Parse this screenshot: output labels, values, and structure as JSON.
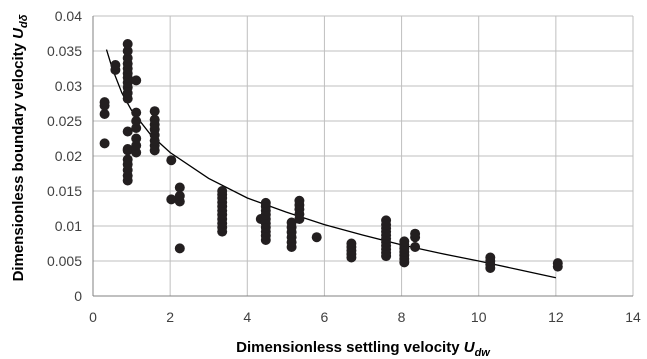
{
  "chart_data": {
    "type": "scatter",
    "title": "",
    "xlabel": "Dimensionless settling velocity",
    "xlabel_var": "U",
    "xlabel_sub": "dw",
    "ylabel": "Dimensionless boundary velocity",
    "ylabel_var": "U",
    "ylabel_sub": "dδ",
    "xlim": [
      0,
      14
    ],
    "ylim": [
      0,
      0.04
    ],
    "x_ticks": [
      "0",
      "2",
      "4",
      "6",
      "8",
      "10",
      "12",
      "14"
    ],
    "y_ticks": [
      "0",
      "0.005",
      "0.01",
      "0.015",
      "0.02",
      "0.025",
      "0.03",
      "0.035",
      "0.04"
    ],
    "grid": true,
    "legend": "none",
    "marker_color": "#231f20",
    "grid_color": "#bfbfbf",
    "series": [
      {
        "type": "scatter",
        "points": [
          [
            0.3,
            0.0218
          ],
          [
            0.3,
            0.026
          ],
          [
            0.3,
            0.0272
          ],
          [
            0.3,
            0.0277
          ],
          [
            0.58,
            0.0323
          ],
          [
            0.58,
            0.033
          ],
          [
            0.9,
            0.0165
          ],
          [
            0.9,
            0.0172
          ],
          [
            0.9,
            0.018
          ],
          [
            0.9,
            0.0188
          ],
          [
            0.9,
            0.0195
          ],
          [
            0.9,
            0.0208
          ],
          [
            0.9,
            0.021
          ],
          [
            0.9,
            0.0235
          ],
          [
            0.9,
            0.0282
          ],
          [
            0.9,
            0.029
          ],
          [
            0.9,
            0.0298
          ],
          [
            0.9,
            0.0305
          ],
          [
            0.9,
            0.0312
          ],
          [
            0.9,
            0.0318
          ],
          [
            0.9,
            0.0325
          ],
          [
            0.9,
            0.0332
          ],
          [
            0.9,
            0.034
          ],
          [
            0.9,
            0.035
          ],
          [
            0.9,
            0.036
          ],
          [
            1.12,
            0.0205
          ],
          [
            1.12,
            0.0215
          ],
          [
            1.12,
            0.0225
          ],
          [
            1.12,
            0.024
          ],
          [
            1.12,
            0.025
          ],
          [
            1.12,
            0.0262
          ],
          [
            1.12,
            0.0308
          ],
          [
            1.6,
            0.0208
          ],
          [
            1.6,
            0.0215
          ],
          [
            1.6,
            0.0222
          ],
          [
            1.6,
            0.023
          ],
          [
            1.6,
            0.0238
          ],
          [
            1.6,
            0.0245
          ],
          [
            1.6,
            0.0252
          ],
          [
            1.6,
            0.0264
          ],
          [
            2.03,
            0.0194
          ],
          [
            2.03,
            0.0138
          ],
          [
            2.25,
            0.0135
          ],
          [
            2.25,
            0.0143
          ],
          [
            2.25,
            0.0155
          ],
          [
            2.25,
            0.0068
          ],
          [
            3.35,
            0.0092
          ],
          [
            3.35,
            0.0098
          ],
          [
            3.35,
            0.0104
          ],
          [
            3.35,
            0.011
          ],
          [
            3.35,
            0.0116
          ],
          [
            3.35,
            0.0122
          ],
          [
            3.35,
            0.0128
          ],
          [
            3.35,
            0.0134
          ],
          [
            3.35,
            0.014
          ],
          [
            3.35,
            0.0145
          ],
          [
            3.35,
            0.015
          ],
          [
            4.35,
            0.011
          ],
          [
            4.48,
            0.008
          ],
          [
            4.48,
            0.0086
          ],
          [
            4.48,
            0.0092
          ],
          [
            4.48,
            0.0098
          ],
          [
            4.48,
            0.0104
          ],
          [
            4.48,
            0.011
          ],
          [
            4.48,
            0.0116
          ],
          [
            4.48,
            0.0122
          ],
          [
            4.48,
            0.0128
          ],
          [
            4.48,
            0.0133
          ],
          [
            5.15,
            0.007
          ],
          [
            5.15,
            0.0077
          ],
          [
            5.15,
            0.0084
          ],
          [
            5.15,
            0.0091
          ],
          [
            5.15,
            0.0098
          ],
          [
            5.15,
            0.0105
          ],
          [
            5.35,
            0.011
          ],
          [
            5.35,
            0.0117
          ],
          [
            5.35,
            0.0124
          ],
          [
            5.35,
            0.013
          ],
          [
            5.35,
            0.0136
          ],
          [
            5.8,
            0.0084
          ],
          [
            6.7,
            0.0055
          ],
          [
            6.7,
            0.006
          ],
          [
            6.7,
            0.0065
          ],
          [
            6.7,
            0.007
          ],
          [
            6.7,
            0.0075
          ],
          [
            7.6,
            0.0057
          ],
          [
            7.6,
            0.0062
          ],
          [
            7.6,
            0.0067
          ],
          [
            7.6,
            0.0072
          ],
          [
            7.6,
            0.0077
          ],
          [
            7.6,
            0.0082
          ],
          [
            7.6,
            0.0087
          ],
          [
            7.6,
            0.0092
          ],
          [
            7.6,
            0.0097
          ],
          [
            7.6,
            0.0102
          ],
          [
            7.6,
            0.0108
          ],
          [
            8.07,
            0.0048
          ],
          [
            8.07,
            0.0053
          ],
          [
            8.07,
            0.0058
          ],
          [
            8.07,
            0.0063
          ],
          [
            8.07,
            0.0068
          ],
          [
            8.07,
            0.0073
          ],
          [
            8.07,
            0.0078
          ],
          [
            8.35,
            0.007
          ],
          [
            8.35,
            0.0084
          ],
          [
            8.35,
            0.0089
          ],
          [
            10.3,
            0.004
          ],
          [
            10.3,
            0.0045
          ],
          [
            10.3,
            0.005
          ],
          [
            10.3,
            0.0055
          ],
          [
            12.05,
            0.0042
          ],
          [
            12.05,
            0.0047
          ]
        ]
      },
      {
        "type": "trendline",
        "points": [
          [
            0.35,
            0.0352
          ],
          [
            0.5,
            0.0325
          ],
          [
            0.75,
            0.029
          ],
          [
            1.0,
            0.0265
          ],
          [
            1.5,
            0.023
          ],
          [
            2.0,
            0.0205
          ],
          [
            3.0,
            0.0168
          ],
          [
            4.0,
            0.014
          ],
          [
            5.0,
            0.012
          ],
          [
            6.0,
            0.0102
          ],
          [
            7.0,
            0.0087
          ],
          [
            8.0,
            0.0073
          ],
          [
            9.0,
            0.0061
          ],
          [
            10.0,
            0.005
          ],
          [
            11.0,
            0.0038
          ],
          [
            12.0,
            0.0026
          ]
        ]
      }
    ]
  }
}
